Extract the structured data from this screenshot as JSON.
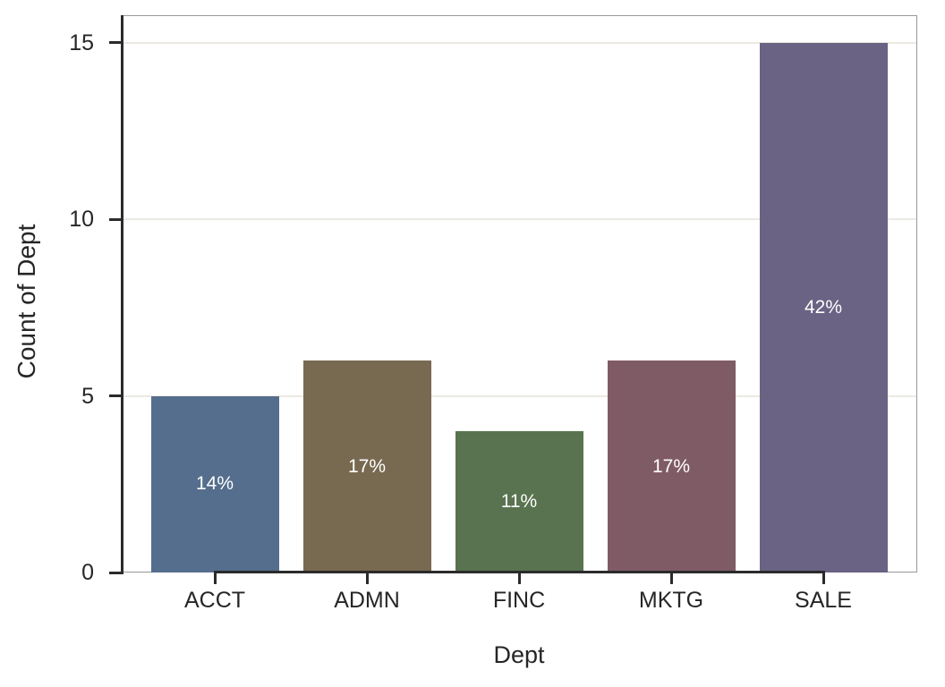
{
  "chart_data": {
    "type": "bar",
    "title": "",
    "xlabel": "Dept",
    "ylabel": "Count of Dept",
    "categories": [
      "ACCT",
      "ADMN",
      "FINC",
      "MKTG",
      "SALE"
    ],
    "values": [
      5,
      6,
      4,
      6,
      15
    ],
    "bar_labels": [
      "14%",
      "17%",
      "11%",
      "17%",
      "42%"
    ],
    "bar_colors": [
      "#556e8d",
      "#786951",
      "#597350",
      "#7f5b66",
      "#6a6384"
    ],
    "yticks": [
      0,
      5,
      10,
      15
    ],
    "ylim": [
      0,
      15.78
    ],
    "grid": "horizontal-only",
    "legend": "none",
    "colors": {
      "axis_text": "#262626",
      "spine": "#2b2b2b",
      "frame": "#999999",
      "gridline": "#ece9e2",
      "bar_label_text": "#ffffff",
      "background": "#ffffff"
    }
  }
}
